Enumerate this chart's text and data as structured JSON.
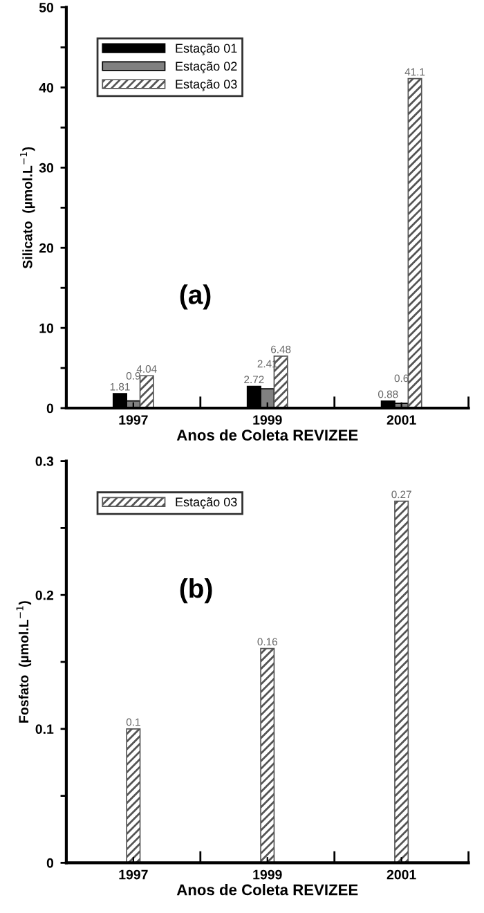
{
  "chart_data": [
    {
      "type": "bar",
      "categories": [
        "1997",
        "1999",
        "2001"
      ],
      "xlabel": "Anos de Coleta REVIZEE",
      "ylabel": "Silicato  (µmol.L$^{−1}$)",
      "ylim": [
        0,
        50
      ],
      "yticks": [
        0,
        10,
        20,
        30,
        40,
        50
      ],
      "legend": "top left",
      "data_labels": true,
      "annotations": [
        "(a)"
      ],
      "series": [
        {
          "name": "Estação 01",
          "color": "#000000",
          "values": [
            1.81,
            2.72,
            0.88
          ]
        },
        {
          "name": "Estação 02",
          "color": "#808080",
          "values": [
            0.9,
            2.41,
            0.6
          ]
        },
        {
          "name": "Estação 03",
          "color": "#555555",
          "values": [
            4.04,
            6.48,
            41.1
          ]
        }
      ]
    },
    {
      "type": "bar",
      "categories": [
        "1997",
        "1999",
        "2001"
      ],
      "xlabel": "Anos de Coleta REVIZEE",
      "ylabel": "Fosfato  (µmol.L$^{−1}$)",
      "ylim": [
        0,
        0.3
      ],
      "yticks": [
        0,
        0.1,
        0.2,
        0.3
      ],
      "legend": "top left",
      "data_labels": true,
      "annotations": [
        "(b)"
      ],
      "series": [
        {
          "name": "Estação 03",
          "color": "#555555",
          "values": [
            0.1,
            0.16,
            0.27
          ]
        }
      ]
    }
  ]
}
